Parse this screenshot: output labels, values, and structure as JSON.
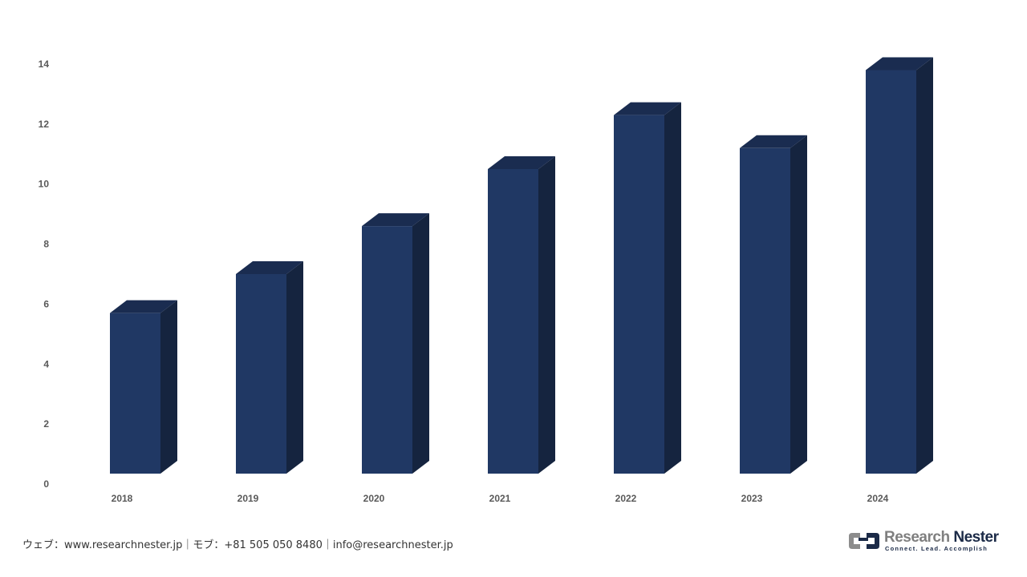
{
  "chart_data": {
    "type": "bar",
    "style": "3d-column",
    "categories": [
      "2018",
      "2019",
      "2020",
      "2021",
      "2022",
      "2023",
      "2024"
    ],
    "values": [
      5.7,
      7.0,
      8.6,
      10.5,
      12.3,
      11.2,
      13.8
    ],
    "ylim": [
      0,
      14
    ],
    "yticks": [
      "0",
      "2",
      "4",
      "6",
      "8",
      "10",
      "12",
      "14"
    ],
    "grid": false,
    "colors": {
      "front": "#203864",
      "side": "#15243f",
      "top": "#1a2c50"
    }
  },
  "footer": {
    "contact": "ウェブ：www.researchnester.jp｜モブ：+81 505 050 8480｜info@researchnester.jp"
  },
  "logo": {
    "name_part1": "Research ",
    "name_part2": "Nester",
    "tagline": "Connect. Lead. Accomplish"
  }
}
